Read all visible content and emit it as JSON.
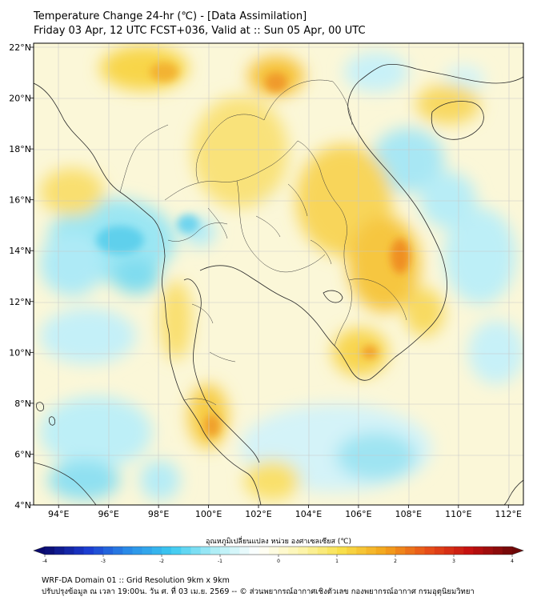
{
  "title": "Temperature Change 24-hr (℃) - [Data Assimilation]",
  "subtitle": "Friday 03 Apr, 12 UTC FCST+036, Valid at :: Sun 05 Apr, 00 UTC",
  "map": {
    "lat_range": [
      4,
      22
    ],
    "lon_range": [
      93,
      112.6
    ],
    "lat_ticks": [
      {
        "value": 4,
        "label": "4°N"
      },
      {
        "value": 6,
        "label": "6°N"
      },
      {
        "value": 8,
        "label": "8°N"
      },
      {
        "value": 10,
        "label": "10°N"
      },
      {
        "value": 12,
        "label": "12°N"
      },
      {
        "value": 14,
        "label": "14°N"
      },
      {
        "value": 16,
        "label": "16°N"
      },
      {
        "value": 18,
        "label": "18°N"
      },
      {
        "value": 20,
        "label": "20°N"
      },
      {
        "value": 22,
        "label": "22°N"
      }
    ],
    "lon_ticks": [
      {
        "value": 94,
        "label": "94°E"
      },
      {
        "value": 96,
        "label": "96°E"
      },
      {
        "value": 98,
        "label": "98°E"
      },
      {
        "value": 100,
        "label": "100°E"
      },
      {
        "value": 102,
        "label": "102°E"
      },
      {
        "value": 104,
        "label": "104°E"
      },
      {
        "value": 106,
        "label": "106°E"
      },
      {
        "value": 108,
        "label": "108°E"
      },
      {
        "value": 110,
        "label": "110°E"
      },
      {
        "value": 112,
        "label": "112°E"
      }
    ]
  },
  "colorbar": {
    "label": "อุณหภูมิเปลี่ยนแปลง หน่วย องศาเซลเซียส (℃)",
    "min": -4,
    "max": 4,
    "ticks": [
      "-4",
      "-3",
      "-2",
      "-1",
      "0",
      "1",
      "2",
      "3",
      "4"
    ],
    "colors": [
      "#0a0a6e",
      "#1c3bd0",
      "#2b8ee8",
      "#3ccaf0",
      "#aeeef6",
      "#ffffff",
      "#fdf6b0",
      "#f8df4a",
      "#f3a41c",
      "#e8501a",
      "#c41010",
      "#6e0808"
    ]
  },
  "footer": {
    "line1": "WRF-DA Domain 01 :: Grid Resolution 9km x 9km",
    "line2": "ปรับปรุงข้อมูล ณ เวลา 19:00น. วัน ศ. ที่ 03 เม.ย. 2569 -- © ส่วนพยากรณ์อากาศเชิงตัวเลข กองพยากรณ์อากาศ กรมอุตุนิยมวิทยา"
  }
}
